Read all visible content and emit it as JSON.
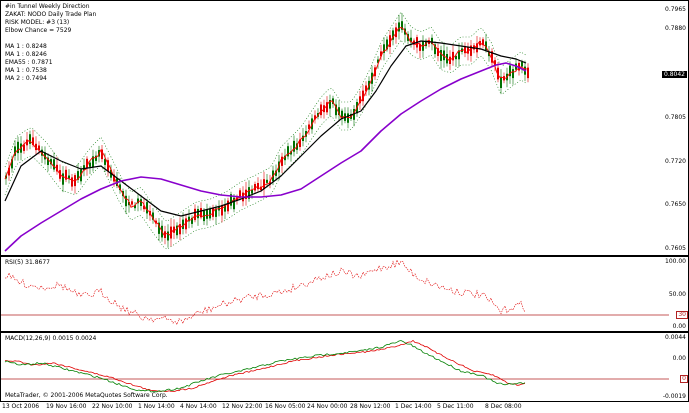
{
  "main_panel": {
    "title": "#in Tunnel Weekly Direction",
    "legend_lines": [
      "ZAKAT: NODO Daily Trade Plan",
      "RISK MODEL: #3 (13)",
      "Elbow Chance = 7529"
    ],
    "ma_lines": [
      "MA 1 : 0.8248",
      "MA 1 : 0.8246",
      "EMA55 : 0.7871",
      "MA 1 : 0.7538",
      "MA 2 : 0.7494"
    ],
    "current_price": "0.8042",
    "price_labels": [
      "0.7965",
      "0.7880",
      "0.7805",
      "0.7720",
      "0.7650",
      "0.7605"
    ]
  },
  "rsi_panel": {
    "title": "RSI(5) 31.8677",
    "axis_labels": [
      "100.00",
      "50.00",
      "0.00"
    ],
    "level_value": "30"
  },
  "macd_panel": {
    "title": "MACD(12,26,9) 0.0015 0.0024",
    "axis_labels": [
      "0.0044",
      "0.00",
      "-0.0019"
    ],
    "level_value": "0"
  },
  "time_axis": {
    "labels": [
      "13 Oct 2006",
      "19 Nov 16:00",
      "22 Nov 10:00",
      "1 Nov 14:00",
      "4 Nov 14:00",
      "12 Nov 22:00",
      "16 Nov 05:00",
      "24 Nov 00:00",
      "28 Nov 12:00",
      "1 Dec 14:00",
      "5 Dec 11:00",
      "8 Dec 08:00"
    ]
  },
  "watermark": "MetaTrader, © 2001-2006 MetaQuotes Software Corp.",
  "colors": {
    "bull_candle": "#007000",
    "bear_candle": "#e00000",
    "ma_black": "#000000",
    "ma_purple": "#8800cc",
    "ma_red": "#ff0000",
    "envelope": "#007000",
    "rsi_line": "#e00000",
    "level_line": "#b22222",
    "macd_main": "#008000",
    "macd_signal": "#e00000"
  }
}
